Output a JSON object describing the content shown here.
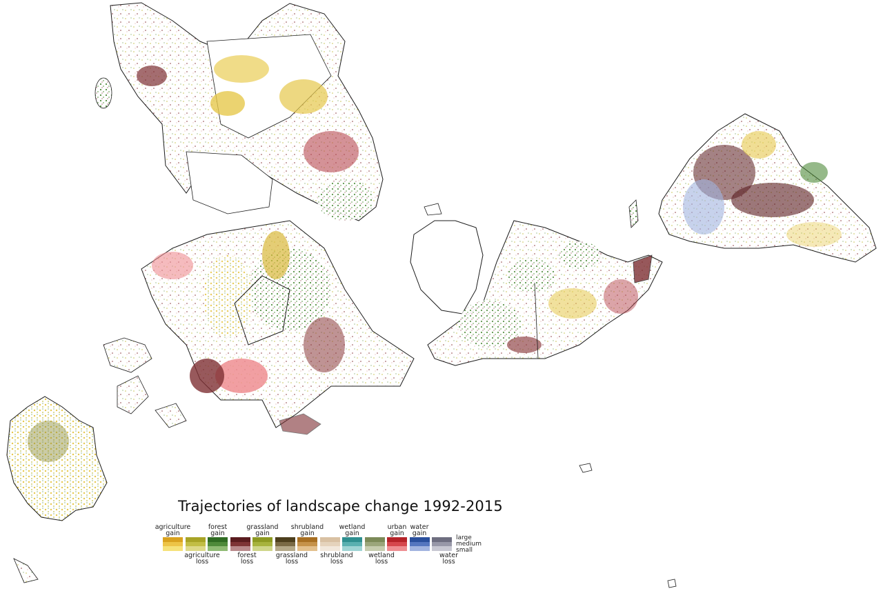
{
  "title": "Trajectories of landscape change 1992-2015",
  "legend": {
    "gain_labels": [
      {
        "key": "agriculture_gain",
        "lines": [
          "agriculture",
          "gain"
        ]
      },
      {
        "key": "forest_gain",
        "lines": [
          "forest",
          "gain"
        ]
      },
      {
        "key": "grassland_gain",
        "lines": [
          "grassland",
          "gain"
        ]
      },
      {
        "key": "shrubland_gain",
        "lines": [
          "shrubland",
          "gain"
        ]
      },
      {
        "key": "wetland_gain",
        "lines": [
          "wetland",
          "gain"
        ]
      },
      {
        "key": "urban_gain",
        "lines": [
          "urban",
          "gain"
        ]
      },
      {
        "key": "water_gain",
        "lines": [
          "water",
          "gain"
        ]
      }
    ],
    "loss_labels": [
      {
        "key": "agriculture_loss",
        "lines": [
          "agriculture",
          "loss"
        ]
      },
      {
        "key": "forest_loss",
        "lines": [
          "forest",
          "loss"
        ]
      },
      {
        "key": "grassland_loss",
        "lines": [
          "grassland",
          "loss"
        ]
      },
      {
        "key": "shrubland_loss",
        "lines": [
          "shrubland",
          "loss"
        ]
      },
      {
        "key": "wetland_loss",
        "lines": [
          "wetland",
          "loss"
        ]
      },
      {
        "key": "water_loss",
        "lines": [
          "water",
          "loss"
        ]
      }
    ],
    "swatches": [
      {
        "key": "agriculture_gain",
        "colors": [
          "#d9a21f",
          "#edc447",
          "#f6e27a"
        ]
      },
      {
        "key": "agriculture_loss",
        "colors": [
          "#a8a426",
          "#c2be45",
          "#ddd988"
        ]
      },
      {
        "key": "forest_gain",
        "colors": [
          "#2f6b22",
          "#4e8a3a",
          "#8fbb74"
        ]
      },
      {
        "key": "forest_loss",
        "colors": [
          "#5a1c1f",
          "#7e3436",
          "#b98a8c"
        ]
      },
      {
        "key": "grassland_gain",
        "colors": [
          "#8d9a22",
          "#a7b33d",
          "#cfd68a"
        ]
      },
      {
        "key": "grassland_loss",
        "colors": [
          "#4d3f1d",
          "#7a6a45",
          "#b4a888"
        ]
      },
      {
        "key": "shrubland_gain",
        "colors": [
          "#a86f22",
          "#c6924a",
          "#e3c08d"
        ]
      },
      {
        "key": "shrubland_loss",
        "colors": [
          "#d9c1a3",
          "#e5d3bc",
          "#f2e8dc"
        ]
      },
      {
        "key": "wetland_gain",
        "colors": [
          "#2f8f8f",
          "#5ab0b0",
          "#9fd4d4"
        ]
      },
      {
        "key": "wetland_loss",
        "colors": [
          "#7c8a58",
          "#9ba67b",
          "#c6ccaf"
        ]
      },
      {
        "key": "urban_gain",
        "colors": [
          "#b52329",
          "#d6474d",
          "#ee8e92"
        ]
      },
      {
        "key": "water_gain",
        "colors": [
          "#2a4f9c",
          "#5576bf",
          "#a2b4e0"
        ]
      },
      {
        "key": "water_loss",
        "colors": [
          "#6e6e80",
          "#9898a8",
          "#c8c8d2"
        ]
      }
    ],
    "size_labels": [
      "large",
      "medium",
      "small"
    ]
  },
  "colors": {
    "outline": "#1a1a1a",
    "agriculture": "#e6b93a",
    "agriculture_loss": "#b8b43e",
    "forest": "#4e8a3a",
    "forest_loss": "#7e2f33",
    "urban": "#e9868a",
    "water": "#6c8bd1"
  }
}
